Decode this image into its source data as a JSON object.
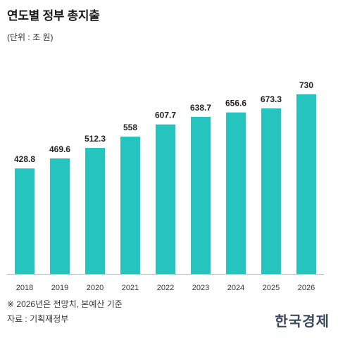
{
  "title": "연도별 정부 총지출",
  "unit_label": "(단위 : 조 원)",
  "note": "※ 2026년은 전망치, 본예산 기준",
  "source": "자료 : 기획재정부",
  "brand": "한국경제",
  "colors": {
    "bar": "#26c4bf",
    "axis": "#bbbbbb",
    "label": "#222222"
  },
  "chart_data": {
    "type": "bar",
    "title": "연도별 정부 총지출",
    "xlabel": "",
    "ylabel": "",
    "unit": "조 원",
    "categories": [
      "2018",
      "2019",
      "2020",
      "2021",
      "2022",
      "2023",
      "2024",
      "2025",
      "2026"
    ],
    "values": [
      428.8,
      469.6,
      512.3,
      558,
      607.7,
      638.7,
      656.6,
      673.3,
      730
    ],
    "value_labels": [
      "428.8",
      "469.6",
      "512.3",
      "558",
      "607.7",
      "638.7",
      "656.6",
      "673.3",
      "730"
    ],
    "ylim": [
      0,
      730
    ],
    "grid": false,
    "legend": "none"
  }
}
